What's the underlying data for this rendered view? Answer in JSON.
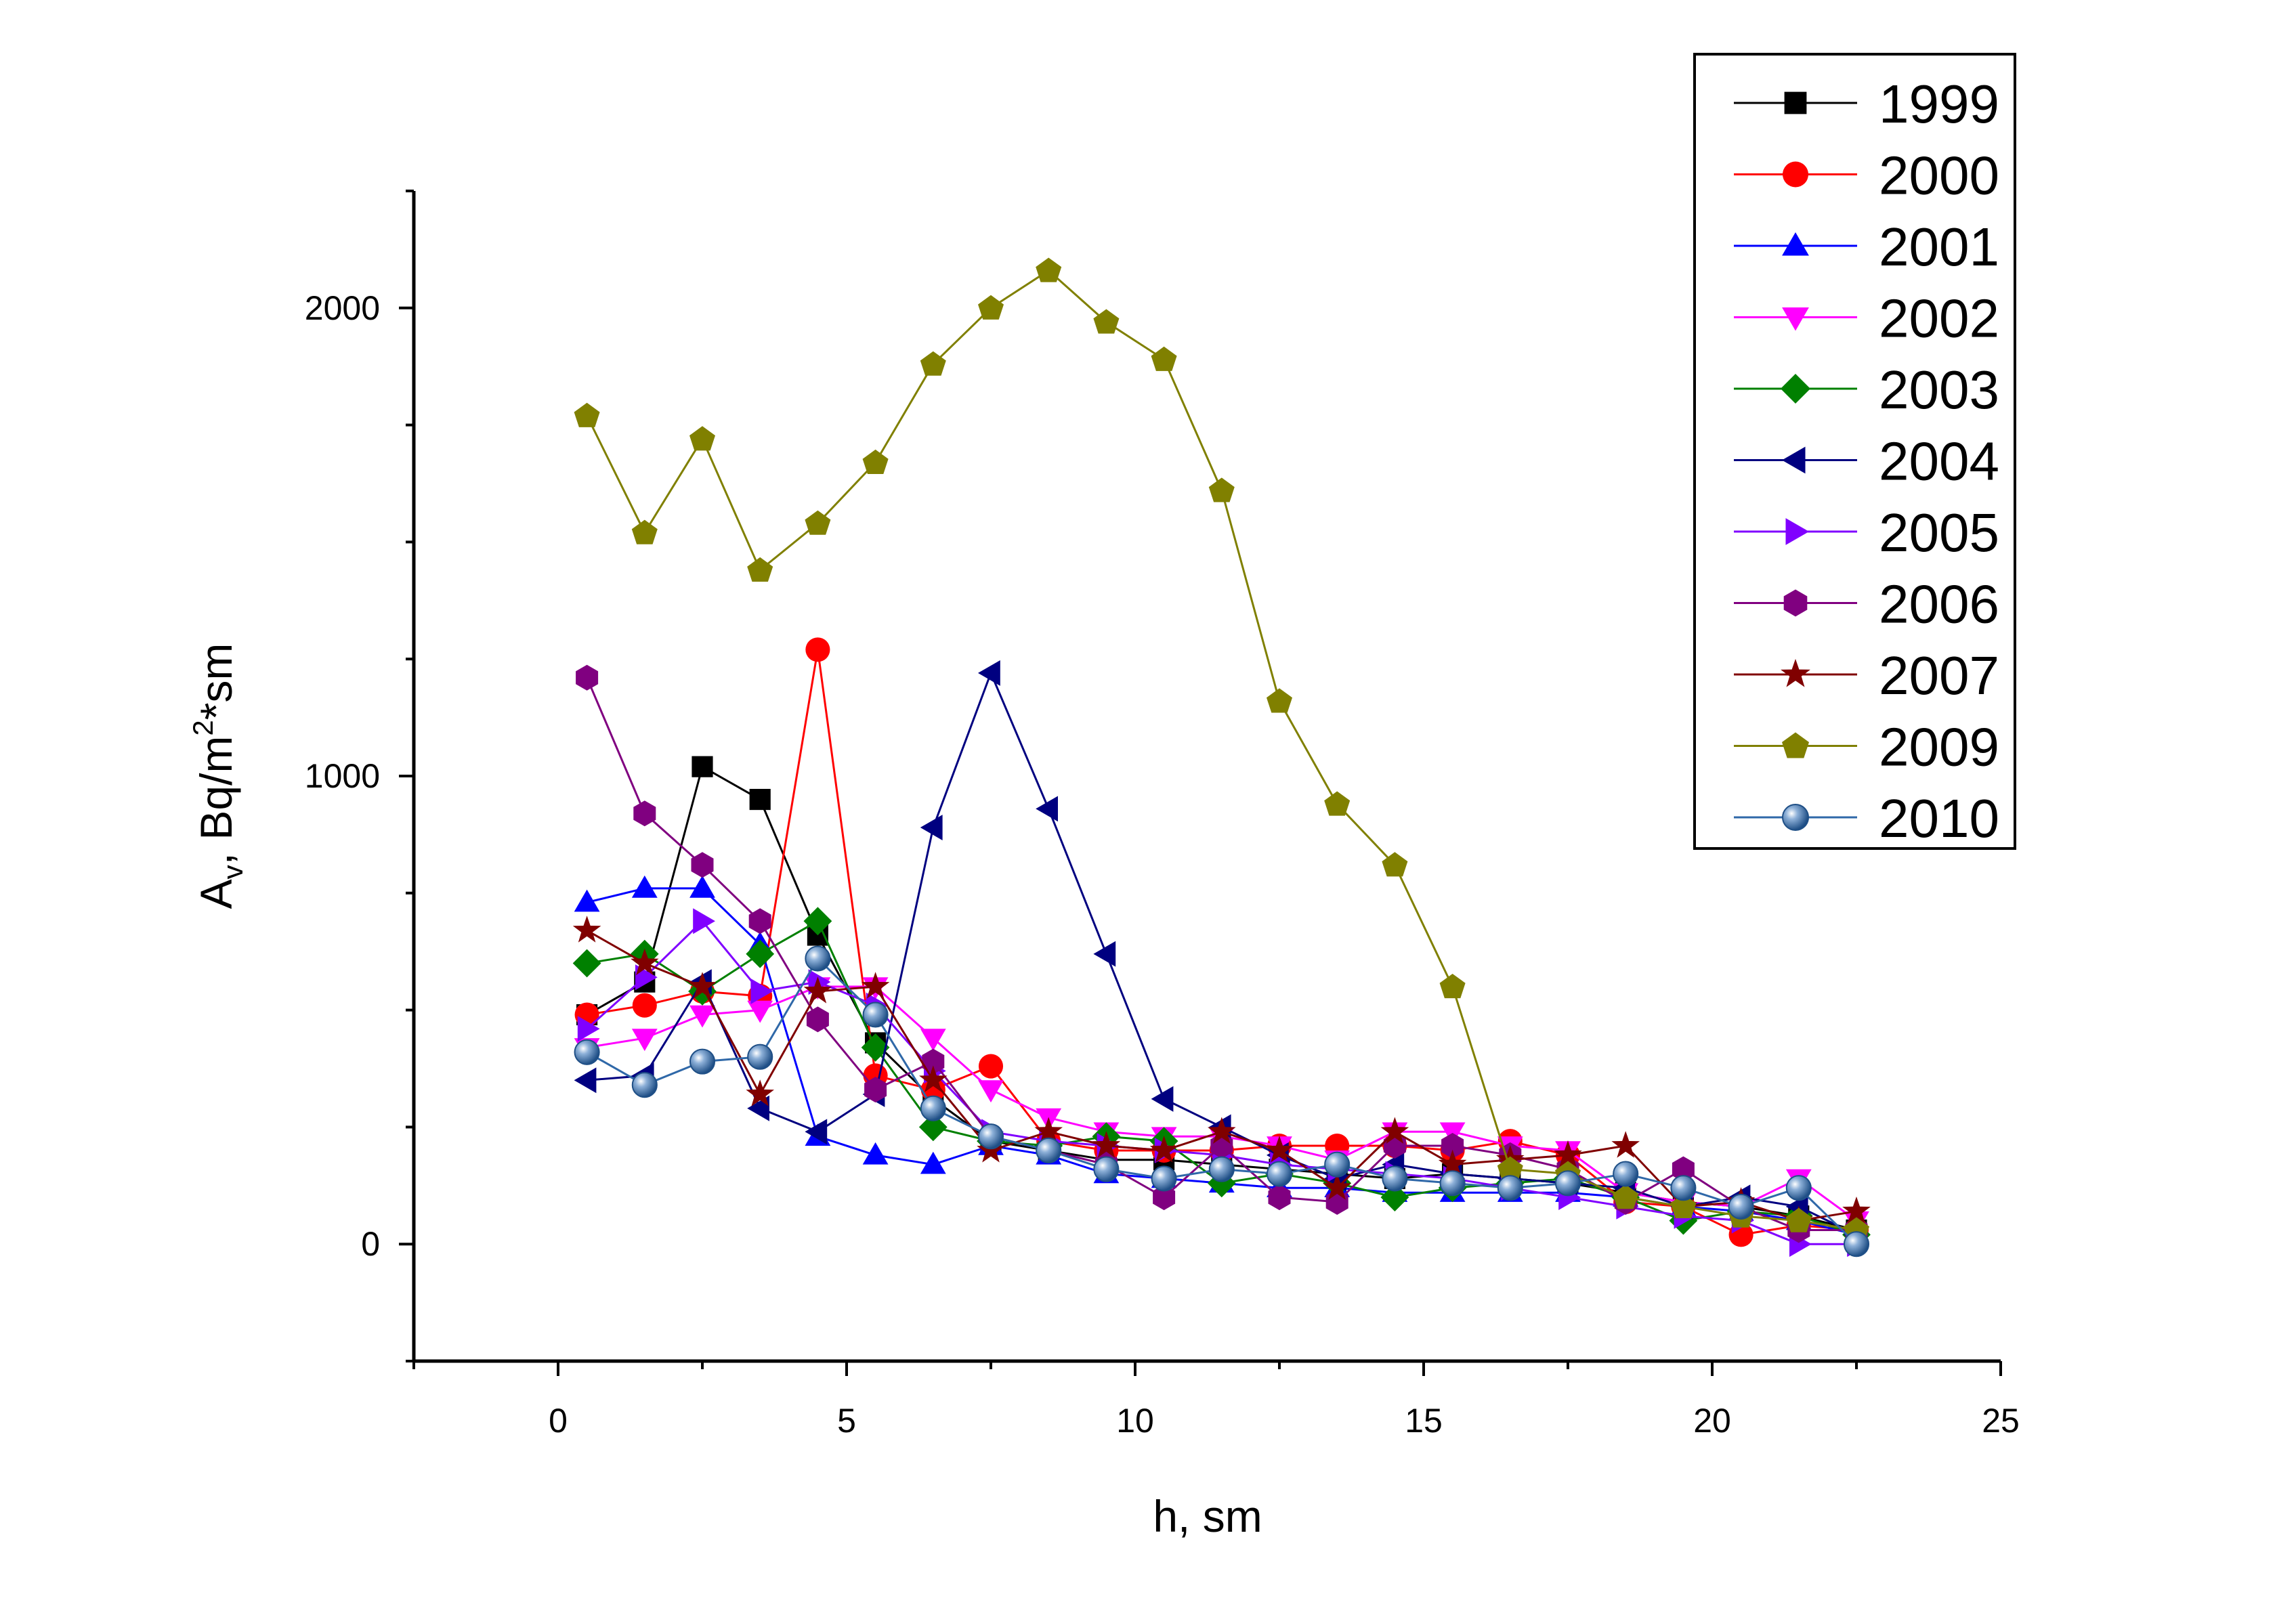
{
  "chart_data": {
    "type": "line",
    "xlabel": "h, sm",
    "ylabel": "A",
    "ylabel_sub": "v",
    "ylabel_rest": ", Bq/m",
    "ylabel_sup": "2",
    "ylabel_tail": "*sm",
    "xlim": [
      -2.5,
      25
    ],
    "ylim": [
      -250,
      2250
    ],
    "x_ticks": [
      0,
      5,
      10,
      15,
      20,
      25
    ],
    "y_ticks": [
      0,
      1000,
      2000
    ],
    "grid": false,
    "legend_position": "top-right",
    "x": [
      0.5,
      1.5,
      2.5,
      3.5,
      4.5,
      5.5,
      6.5,
      7.5,
      8.5,
      9.5,
      10.5,
      11.5,
      12.5,
      13.5,
      14.5,
      15.5,
      16.5,
      17.5,
      18.5,
      19.5,
      20.5,
      21.5,
      22.5
    ],
    "series": [
      {
        "name": "1999",
        "color": "#000000",
        "marker": "square",
        "values": [
          490,
          560,
          1020,
          950,
          660,
          430,
          310,
          220,
          200,
          180,
          180,
          170,
          160,
          150,
          140,
          150,
          140,
          130,
          110,
          90,
          80,
          60,
          30
        ]
      },
      {
        "name": "2000",
        "color": "#ff0000",
        "marker": "circle",
        "values": [
          490,
          510,
          540,
          530,
          1270,
          360,
          330,
          380,
          220,
          200,
          200,
          200,
          210,
          210,
          210,
          200,
          220,
          190,
          90,
          80,
          20,
          40,
          30
        ]
      },
      {
        "name": "2001",
        "color": "#0000ff",
        "marker": "triangle-up",
        "values": [
          730,
          760,
          760,
          640,
          230,
          190,
          170,
          210,
          190,
          150,
          140,
          130,
          120,
          120,
          110,
          110,
          110,
          110,
          100,
          80,
          70,
          50,
          20
        ]
      },
      {
        "name": "2002",
        "color": "#ff00ff",
        "marker": "triangle-down",
        "values": [
          420,
          440,
          490,
          500,
          550,
          550,
          440,
          330,
          270,
          240,
          230,
          230,
          210,
          180,
          240,
          240,
          210,
          200,
          110,
          90,
          80,
          140,
          50
        ]
      },
      {
        "name": "2003",
        "color": "#008000",
        "marker": "diamond",
        "values": [
          600,
          620,
          540,
          620,
          690,
          420,
          250,
          220,
          210,
          230,
          220,
          130,
          150,
          130,
          100,
          120,
          130,
          140,
          100,
          50,
          70,
          60,
          20
        ]
      },
      {
        "name": "2004",
        "color": "#000080",
        "marker": "triangle-left",
        "values": [
          350,
          360,
          560,
          290,
          240,
          320,
          890,
          1220,
          930,
          620,
          310,
          250,
          190,
          140,
          170,
          150,
          140,
          130,
          120,
          80,
          100,
          80,
          20
        ]
      },
      {
        "name": "2005",
        "color": "#8000ff",
        "marker": "triangle-right",
        "values": [
          460,
          570,
          690,
          540,
          560,
          510,
          370,
          240,
          220,
          210,
          200,
          190,
          170,
          160,
          150,
          140,
          120,
          100,
          80,
          60,
          50,
          0,
          0
        ]
      },
      {
        "name": "2006",
        "color": "#800080",
        "marker": "hexagon",
        "values": [
          1210,
          920,
          810,
          690,
          480,
          330,
          390,
          230,
          200,
          170,
          100,
          210,
          100,
          90,
          210,
          210,
          190,
          160,
          90,
          160,
          80,
          30,
          30
        ]
      },
      {
        "name": "2007",
        "color": "#800000",
        "marker": "star",
        "values": [
          670,
          600,
          550,
          320,
          540,
          550,
          350,
          200,
          240,
          210,
          200,
          240,
          200,
          120,
          240,
          170,
          180,
          190,
          210,
          80,
          90,
          50,
          70
        ]
      },
      {
        "name": "2009",
        "color": "#808000",
        "marker": "pentagon",
        "values": [
          1770,
          1520,
          1720,
          1440,
          1540,
          1670,
          1880,
          2000,
          2080,
          1970,
          1890,
          1610,
          1160,
          940,
          810,
          550,
          160,
          150,
          100,
          80,
          60,
          50,
          30
        ]
      },
      {
        "name": "2010",
        "color": "#2f68a8",
        "marker": "sphere",
        "values": [
          410,
          340,
          390,
          400,
          610,
          490,
          290,
          230,
          200,
          160,
          140,
          160,
          150,
          170,
          140,
          130,
          120,
          130,
          150,
          120,
          80,
          120,
          0
        ]
      }
    ]
  }
}
